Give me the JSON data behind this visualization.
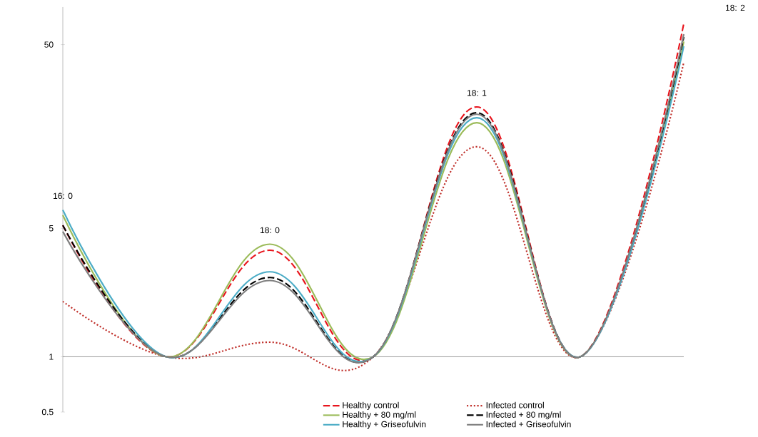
{
  "chart_data": {
    "type": "line",
    "categories": [
      null,
      null,
      null,
      null,
      null,
      null,
      null
    ],
    "series": [
      {
        "name": "Healthy control",
        "color": "#e8141c",
        "line_style": "dashed",
        "values": [
          5.2,
          1,
          3.8,
          1,
          22.9,
          1,
          65
        ]
      },
      {
        "name": "Infected control",
        "color": "#c0302b",
        "line_style": "dotted",
        "values": [
          2.0,
          1,
          1.2,
          1,
          13.9,
          1,
          40
        ]
      },
      {
        "name": "Healthy + 80 mg/ml",
        "color": "#9bbb59",
        "line_style": "solid",
        "values": [
          5.9,
          1,
          4.1,
          1,
          18.8,
          1,
          52
        ]
      },
      {
        "name": "Infected + 80 mg/ml",
        "color": "#000000",
        "line_style": "dashed",
        "values": [
          5.2,
          1,
          2.7,
          1,
          21.3,
          1,
          55
        ]
      },
      {
        "name": "Healthy + Griseofulvin",
        "color": "#4bacc6",
        "line_style": "solid",
        "values": [
          6.3,
          1,
          2.9,
          1,
          20,
          1,
          49
        ]
      },
      {
        "name": "Infected + Griseofulvin",
        "color": "#7f7f7f",
        "line_style": "solid",
        "values": [
          4.8,
          1,
          2.6,
          1,
          20.9,
          1,
          57
        ]
      }
    ],
    "annotations": [
      "16: 0",
      "18: 0",
      "18: 1",
      "18: 2"
    ],
    "log": "y",
    "ylim": [
      0.5,
      80
    ],
    "yticks": [
      0.5,
      1,
      5,
      50
    ],
    "ref_lines": [
      {
        "axis": "y",
        "value": 1,
        "color": "#808080"
      }
    ],
    "grid": false,
    "legend": "bottom",
    "marker": "none"
  }
}
